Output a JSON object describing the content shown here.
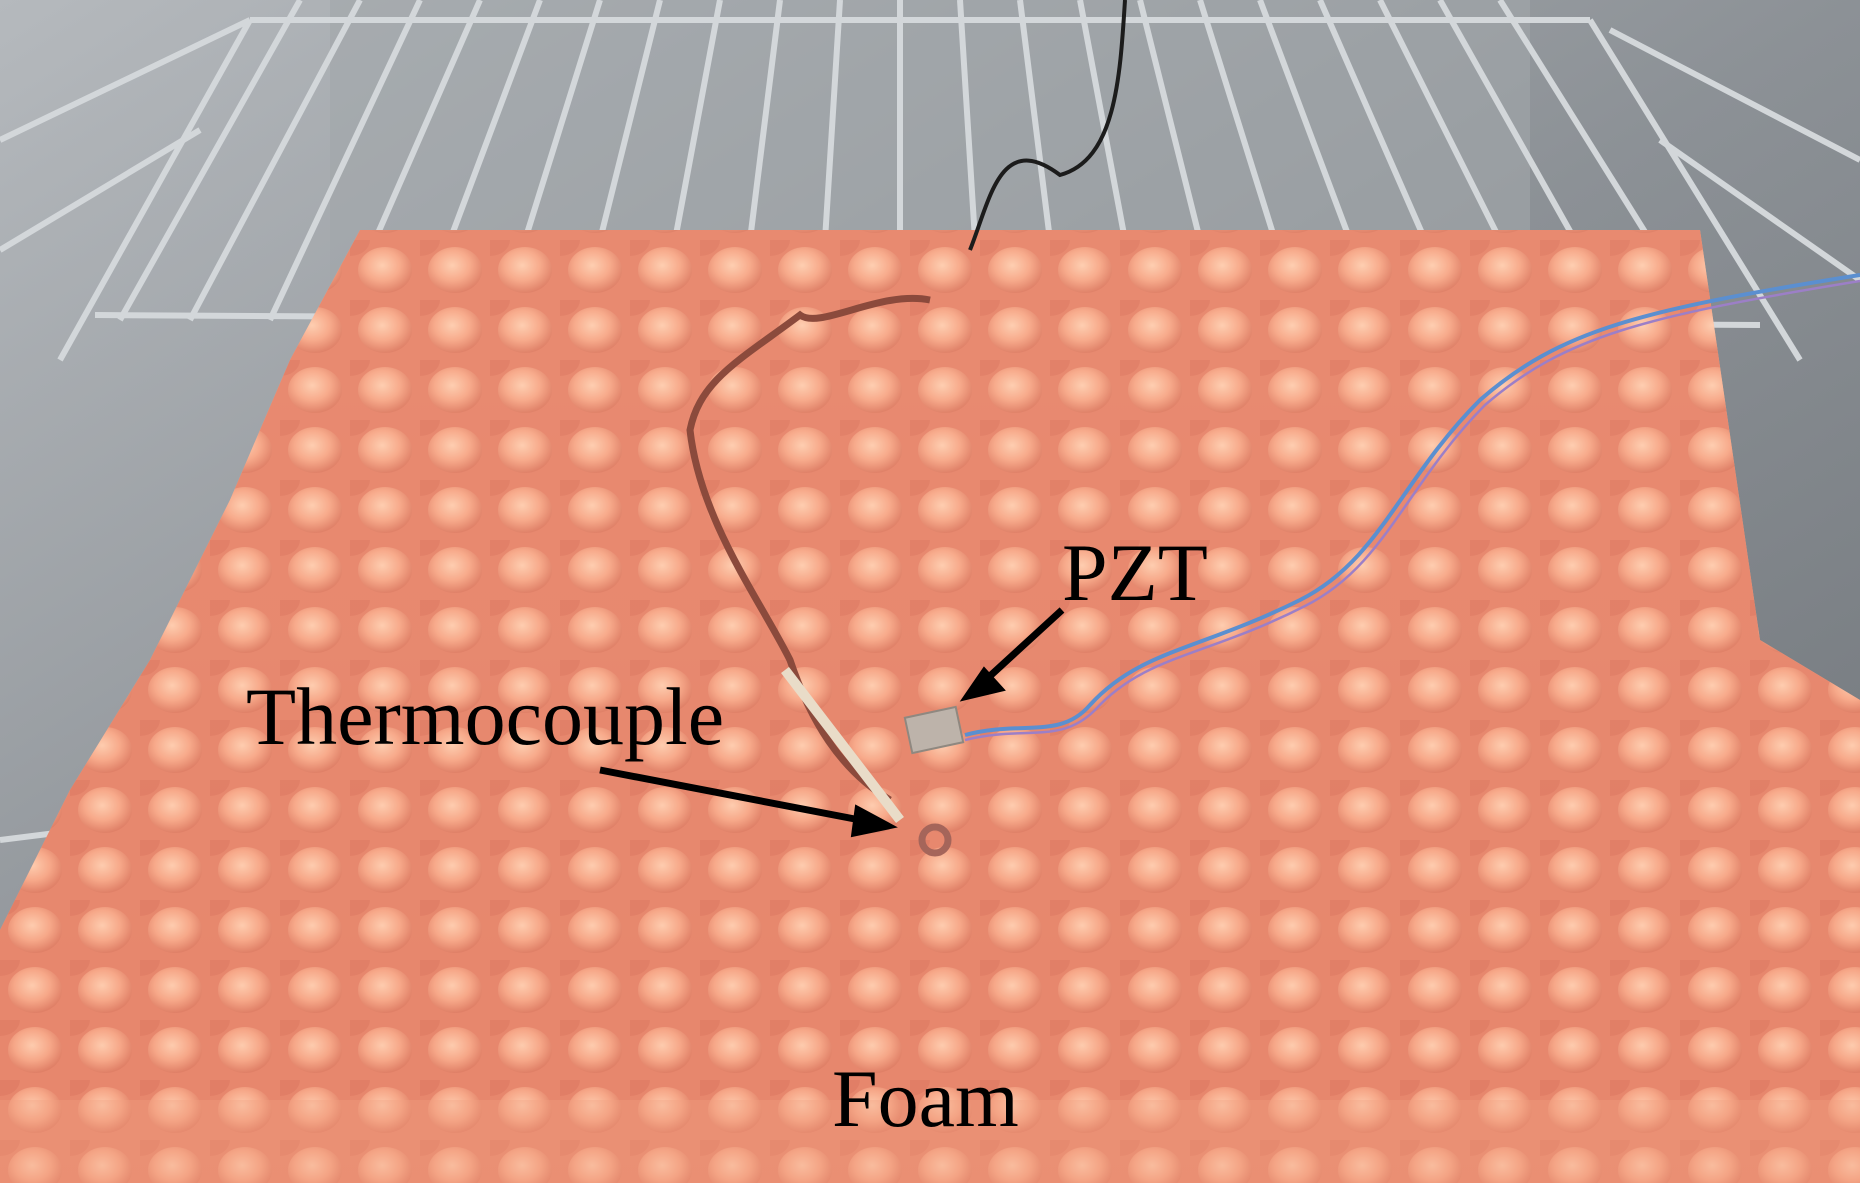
{
  "labels": {
    "pzt": "PZT",
    "thermocouple": "Thermocouple",
    "foam": "Foam"
  },
  "colors": {
    "chamber_wall": "#8f9499",
    "rack_wire": "#cfd3d6",
    "foam_base": "#f4a584",
    "foam_peak": "#ffc8a8",
    "foam_valley": "#d86e57",
    "thermocouple_wire": "#8b4a3c",
    "pzt_wire": "#5b8fd0",
    "arrow": "#000000"
  }
}
